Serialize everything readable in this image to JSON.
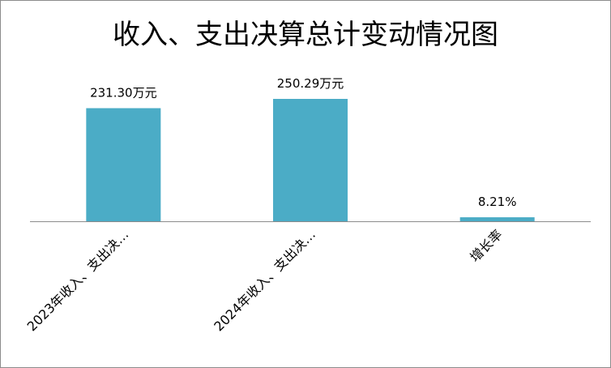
{
  "chart_data": {
    "type": "bar",
    "title": "收入、支出决算总计变动情况图",
    "categories": [
      "2023年收入、支出决…",
      "2024年收入、支出决…",
      "增长率"
    ],
    "values": [
      231.3,
      250.29,
      8.21
    ],
    "data_labels": [
      "231.30万元",
      "250.29万元",
      "8.21%"
    ],
    "xlabel": "",
    "ylabel": "",
    "ylim": [
      0,
      270
    ],
    "grid": false,
    "legend": "none",
    "bar_color": "#4bacc6"
  }
}
